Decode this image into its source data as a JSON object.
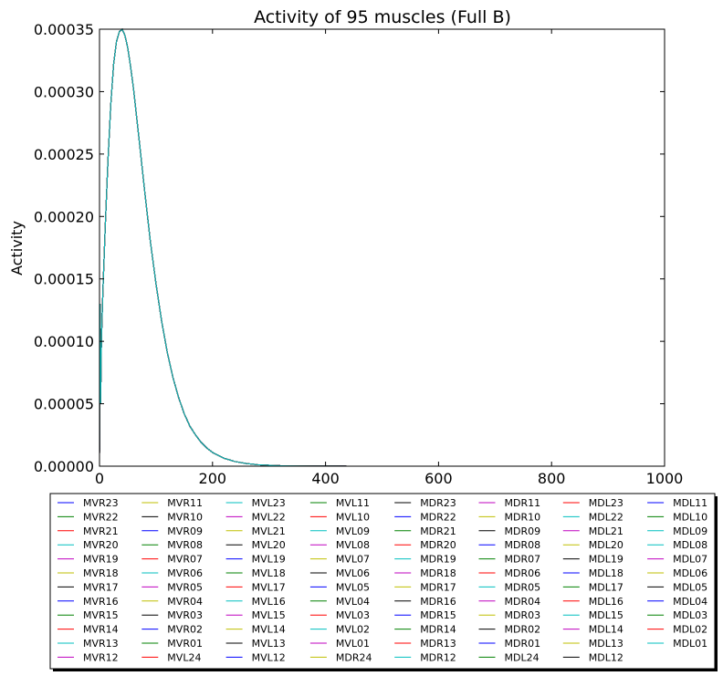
{
  "chart_data": {
    "type": "line",
    "title": "Activity of 95 muscles (Full B)",
    "xlabel": "",
    "ylabel": "Activity",
    "xlim": [
      0,
      1000
    ],
    "ylim": [
      0,
      0.00035
    ],
    "xticks": [
      "0",
      "200",
      "400",
      "600",
      "800",
      "1000"
    ],
    "yticks": [
      "0.00000",
      "0.00005",
      "0.00010",
      "0.00015",
      "0.00020",
      "0.00025",
      "0.00030",
      "0.00035"
    ],
    "grid": false,
    "legend_position": "below plot, 8 columns",
    "curve_note": "All 95 series overlap on a single curve",
    "x": [
      0,
      1,
      2,
      3,
      4,
      5,
      6,
      8,
      10,
      15,
      20,
      25,
      30,
      35,
      40,
      45,
      50,
      55,
      60,
      70,
      80,
      90,
      100,
      110,
      120,
      130,
      140,
      150,
      160,
      170,
      180,
      190,
      200,
      220,
      240,
      260,
      280,
      300,
      320,
      340,
      360,
      380,
      400,
      450,
      500,
      600,
      700,
      800,
      900,
      1000
    ],
    "y": [
      1e-05,
      0.00013,
      5e-05,
      9e-05,
      0.00011,
      0.000125,
      0.00014,
      0.000165,
      0.00019,
      0.000245,
      0.00029,
      0.000322,
      0.00034,
      0.000348,
      0.00035,
      0.000345,
      0.000335,
      0.00032,
      0.000303,
      0.000262,
      0.00022,
      0.00018,
      0.000146,
      0.000116,
      9.1e-05,
      7.1e-05,
      5.5e-05,
      4.2e-05,
      3.2e-05,
      2.5e-05,
      1.9e-05,
      1.45e-05,
      1.1e-05,
      6.4e-06,
      3.7e-06,
      2.1e-06,
      1.2e-06,
      7e-07,
      4e-07,
      2.5e-07,
      1.5e-07,
      1e-07,
      6e-08,
      2e-08,
      0.0,
      0.0,
      0.0,
      0.0,
      0.0,
      0.0
    ],
    "series": [
      {
        "name": "MVR23",
        "color": "#0000ff"
      },
      {
        "name": "MVR22",
        "color": "#008000"
      },
      {
        "name": "MVR21",
        "color": "#ff0000"
      },
      {
        "name": "MVR20",
        "color": "#00bfbf"
      },
      {
        "name": "MVR19",
        "color": "#bf00bf"
      },
      {
        "name": "MVR18",
        "color": "#bfbf00"
      },
      {
        "name": "MVR17",
        "color": "#000000"
      },
      {
        "name": "MVR16",
        "color": "#0000ff"
      },
      {
        "name": "MVR15",
        "color": "#008000"
      },
      {
        "name": "MVR14",
        "color": "#ff0000"
      },
      {
        "name": "MVR13",
        "color": "#00bfbf"
      },
      {
        "name": "MVR12",
        "color": "#bf00bf"
      },
      {
        "name": "MVR11",
        "color": "#bfbf00"
      },
      {
        "name": "MVR10",
        "color": "#000000"
      },
      {
        "name": "MVR09",
        "color": "#0000ff"
      },
      {
        "name": "MVR08",
        "color": "#008000"
      },
      {
        "name": "MVR07",
        "color": "#ff0000"
      },
      {
        "name": "MVR06",
        "color": "#00bfbf"
      },
      {
        "name": "MVR05",
        "color": "#bf00bf"
      },
      {
        "name": "MVR04",
        "color": "#bfbf00"
      },
      {
        "name": "MVR03",
        "color": "#000000"
      },
      {
        "name": "MVR02",
        "color": "#0000ff"
      },
      {
        "name": "MVR01",
        "color": "#008000"
      },
      {
        "name": "MVL24",
        "color": "#ff0000"
      },
      {
        "name": "MVL23",
        "color": "#00bfbf"
      },
      {
        "name": "MVL22",
        "color": "#bf00bf"
      },
      {
        "name": "MVL21",
        "color": "#bfbf00"
      },
      {
        "name": "MVL20",
        "color": "#000000"
      },
      {
        "name": "MVL19",
        "color": "#0000ff"
      },
      {
        "name": "MVL18",
        "color": "#008000"
      },
      {
        "name": "MVL17",
        "color": "#ff0000"
      },
      {
        "name": "MVL16",
        "color": "#00bfbf"
      },
      {
        "name": "MVL15",
        "color": "#bf00bf"
      },
      {
        "name": "MVL14",
        "color": "#bfbf00"
      },
      {
        "name": "MVL13",
        "color": "#000000"
      },
      {
        "name": "MVL12",
        "color": "#0000ff"
      },
      {
        "name": "MVL11",
        "color": "#008000"
      },
      {
        "name": "MVL10",
        "color": "#ff0000"
      },
      {
        "name": "MVL09",
        "color": "#00bfbf"
      },
      {
        "name": "MVL08",
        "color": "#bf00bf"
      },
      {
        "name": "MVL07",
        "color": "#bfbf00"
      },
      {
        "name": "MVL06",
        "color": "#000000"
      },
      {
        "name": "MVL05",
        "color": "#0000ff"
      },
      {
        "name": "MVL04",
        "color": "#008000"
      },
      {
        "name": "MVL03",
        "color": "#ff0000"
      },
      {
        "name": "MVL02",
        "color": "#00bfbf"
      },
      {
        "name": "MVL01",
        "color": "#bf00bf"
      },
      {
        "name": "MDR24",
        "color": "#bfbf00"
      },
      {
        "name": "MDR23",
        "color": "#000000"
      },
      {
        "name": "MDR22",
        "color": "#0000ff"
      },
      {
        "name": "MDR21",
        "color": "#008000"
      },
      {
        "name": "MDR20",
        "color": "#ff0000"
      },
      {
        "name": "MDR19",
        "color": "#00bfbf"
      },
      {
        "name": "MDR18",
        "color": "#bf00bf"
      },
      {
        "name": "MDR17",
        "color": "#bfbf00"
      },
      {
        "name": "MDR16",
        "color": "#000000"
      },
      {
        "name": "MDR15",
        "color": "#0000ff"
      },
      {
        "name": "MDR14",
        "color": "#008000"
      },
      {
        "name": "MDR13",
        "color": "#ff0000"
      },
      {
        "name": "MDR12",
        "color": "#00bfbf"
      },
      {
        "name": "MDR11",
        "color": "#bf00bf"
      },
      {
        "name": "MDR10",
        "color": "#bfbf00"
      },
      {
        "name": "MDR09",
        "color": "#000000"
      },
      {
        "name": "MDR08",
        "color": "#0000ff"
      },
      {
        "name": "MDR07",
        "color": "#008000"
      },
      {
        "name": "MDR06",
        "color": "#ff0000"
      },
      {
        "name": "MDR05",
        "color": "#00bfbf"
      },
      {
        "name": "MDR04",
        "color": "#bf00bf"
      },
      {
        "name": "MDR03",
        "color": "#bfbf00"
      },
      {
        "name": "MDR02",
        "color": "#000000"
      },
      {
        "name": "MDR01",
        "color": "#0000ff"
      },
      {
        "name": "MDL24",
        "color": "#008000"
      },
      {
        "name": "MDL23",
        "color": "#ff0000"
      },
      {
        "name": "MDL22",
        "color": "#00bfbf"
      },
      {
        "name": "MDL21",
        "color": "#bf00bf"
      },
      {
        "name": "MDL20",
        "color": "#bfbf00"
      },
      {
        "name": "MDL19",
        "color": "#000000"
      },
      {
        "name": "MDL18",
        "color": "#0000ff"
      },
      {
        "name": "MDL17",
        "color": "#008000"
      },
      {
        "name": "MDL16",
        "color": "#ff0000"
      },
      {
        "name": "MDL15",
        "color": "#00bfbf"
      },
      {
        "name": "MDL14",
        "color": "#bf00bf"
      },
      {
        "name": "MDL13",
        "color": "#bfbf00"
      },
      {
        "name": "MDL12",
        "color": "#000000"
      },
      {
        "name": "MDL11",
        "color": "#0000ff"
      },
      {
        "name": "MDL10",
        "color": "#008000"
      },
      {
        "name": "MDL09",
        "color": "#00bfbf"
      },
      {
        "name": "MDL08",
        "color": "#00bfbf"
      },
      {
        "name": "MDL07",
        "color": "#bf00bf"
      },
      {
        "name": "MDL06",
        "color": "#bfbf00"
      },
      {
        "name": "MDL05",
        "color": "#000000"
      },
      {
        "name": "MDL04",
        "color": "#0000ff"
      },
      {
        "name": "MDL03",
        "color": "#008000"
      },
      {
        "name": "MDL02",
        "color": "#ff0000"
      },
      {
        "name": "MDL01",
        "color": "#00bfbf"
      }
    ]
  }
}
